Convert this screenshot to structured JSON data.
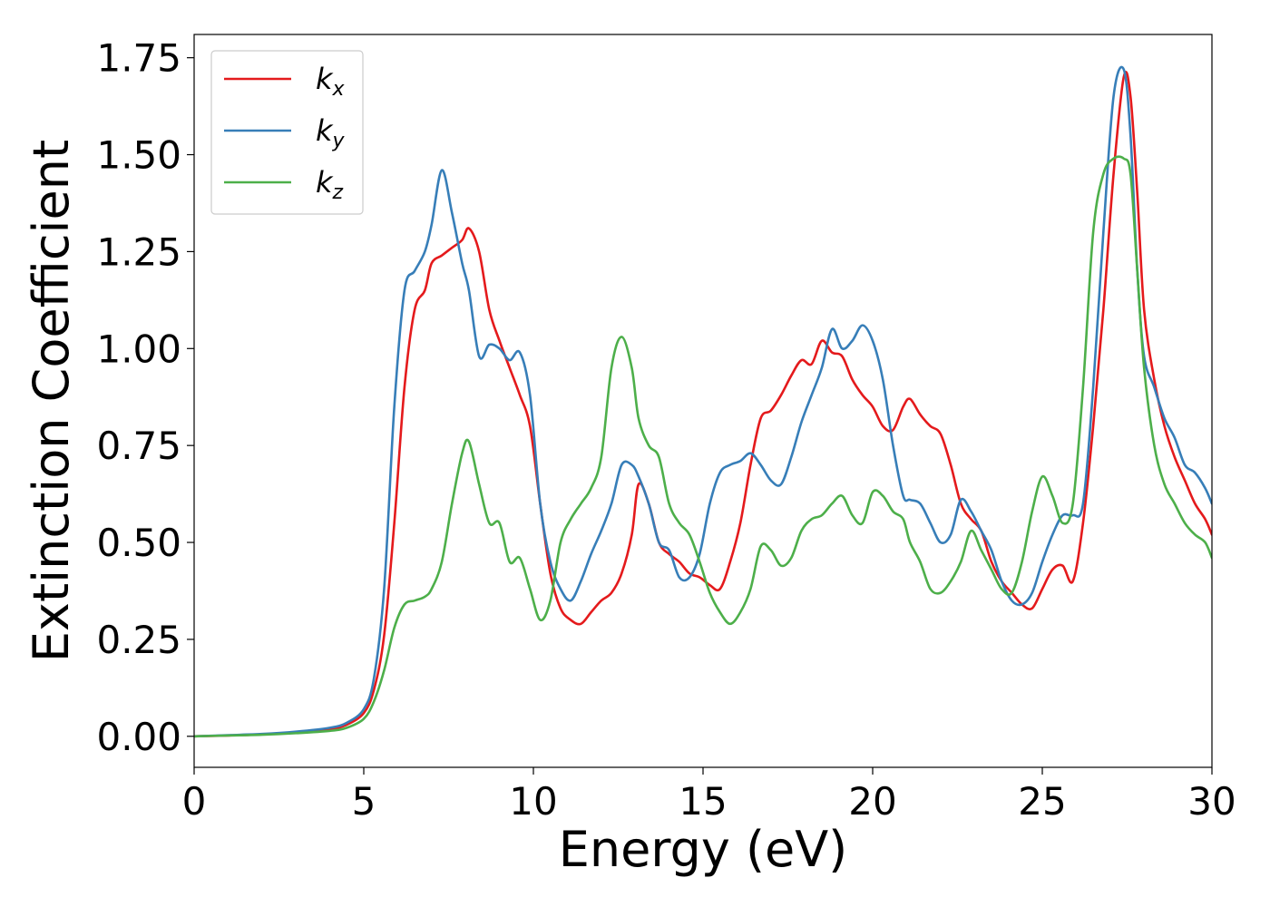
{
  "chart_data": {
    "type": "line",
    "xlabel": "Energy (eV)",
    "ylabel": "Extinction Coefficient",
    "xlim": [
      0,
      30
    ],
    "ylim": [
      -0.08,
      1.81
    ],
    "xticks": [
      0,
      5,
      10,
      15,
      20,
      25,
      30
    ],
    "xtick_labels": [
      "0",
      "5",
      "10",
      "15",
      "20",
      "25",
      "30"
    ],
    "yticks": [
      0.0,
      0.25,
      0.5,
      0.75,
      1.0,
      1.25,
      1.5,
      1.75
    ],
    "ytick_labels": [
      "0.00",
      "0.25",
      "0.50",
      "0.75",
      "1.00",
      "1.25",
      "1.50",
      "1.75"
    ],
    "grid": false,
    "legend_position": "upper-left",
    "series": [
      {
        "name": "k_x",
        "label_base": "k",
        "label_sub": "x",
        "color": "#e41a1c",
        "x": [
          0,
          1,
          2,
          3,
          4,
          4.5,
          5,
          5.3,
          5.6,
          5.9,
          6.2,
          6.5,
          6.8,
          7.0,
          7.3,
          7.6,
          7.9,
          8.1,
          8.4,
          8.7,
          9.0,
          9.3,
          9.6,
          9.9,
          10.2,
          10.5,
          10.8,
          11.1,
          11.4,
          11.7,
          12.0,
          12.3,
          12.6,
          12.9,
          13.1,
          13.4,
          13.7,
          14.0,
          14.3,
          14.6,
          14.9,
          15.2,
          15.5,
          15.8,
          16.1,
          16.4,
          16.7,
          17.0,
          17.3,
          17.6,
          17.9,
          18.2,
          18.5,
          18.8,
          19.1,
          19.4,
          19.7,
          20.0,
          20.3,
          20.6,
          20.9,
          21.1,
          21.4,
          21.7,
          22.0,
          22.3,
          22.6,
          22.9,
          23.2,
          23.5,
          23.8,
          24.1,
          24.4,
          24.7,
          25.0,
          25.3,
          25.6,
          25.9,
          26.2,
          26.5,
          26.8,
          27.1,
          27.4,
          27.6,
          27.8,
          28.0,
          28.3,
          28.6,
          28.9,
          29.2,
          29.5,
          29.8,
          30.0
        ],
        "y": [
          0.0,
          0.002,
          0.005,
          0.01,
          0.018,
          0.03,
          0.06,
          0.12,
          0.26,
          0.55,
          0.9,
          1.1,
          1.15,
          1.22,
          1.24,
          1.26,
          1.28,
          1.31,
          1.25,
          1.1,
          1.02,
          0.95,
          0.88,
          0.8,
          0.6,
          0.42,
          0.33,
          0.3,
          0.29,
          0.32,
          0.35,
          0.37,
          0.42,
          0.52,
          0.65,
          0.6,
          0.5,
          0.47,
          0.45,
          0.42,
          0.41,
          0.39,
          0.38,
          0.45,
          0.55,
          0.7,
          0.82,
          0.84,
          0.88,
          0.93,
          0.97,
          0.96,
          1.02,
          0.99,
          0.98,
          0.92,
          0.88,
          0.85,
          0.8,
          0.79,
          0.85,
          0.87,
          0.83,
          0.8,
          0.78,
          0.7,
          0.6,
          0.56,
          0.53,
          0.45,
          0.4,
          0.37,
          0.34,
          0.33,
          0.38,
          0.43,
          0.44,
          0.4,
          0.55,
          0.8,
          1.1,
          1.45,
          1.7,
          1.65,
          1.4,
          1.1,
          0.92,
          0.8,
          0.72,
          0.66,
          0.6,
          0.56,
          0.52
        ]
      },
      {
        "name": "k_y",
        "label_base": "k",
        "label_sub": "y",
        "color": "#377eb8",
        "x": [
          0,
          1,
          2,
          3,
          4,
          4.5,
          5,
          5.3,
          5.6,
          5.9,
          6.2,
          6.5,
          6.8,
          7.0,
          7.3,
          7.6,
          7.9,
          8.1,
          8.4,
          8.7,
          9.0,
          9.3,
          9.6,
          9.9,
          10.2,
          10.5,
          10.8,
          11.1,
          11.4,
          11.7,
          12.0,
          12.3,
          12.6,
          12.9,
          13.1,
          13.4,
          13.7,
          14.0,
          14.3,
          14.6,
          14.9,
          15.2,
          15.5,
          15.8,
          16.1,
          16.4,
          16.7,
          17.0,
          17.3,
          17.6,
          17.9,
          18.2,
          18.5,
          18.8,
          19.1,
          19.4,
          19.7,
          20.0,
          20.3,
          20.6,
          20.9,
          21.1,
          21.4,
          21.7,
          22.0,
          22.3,
          22.6,
          22.9,
          23.2,
          23.5,
          23.8,
          24.1,
          24.4,
          24.7,
          25.0,
          25.3,
          25.6,
          25.9,
          26.2,
          26.5,
          26.8,
          27.1,
          27.4,
          27.6,
          27.8,
          28.0,
          28.3,
          28.6,
          28.9,
          29.2,
          29.5,
          29.8,
          30.0
        ],
        "y": [
          0.0,
          0.003,
          0.006,
          0.012,
          0.022,
          0.035,
          0.07,
          0.15,
          0.38,
          0.85,
          1.15,
          1.2,
          1.25,
          1.32,
          1.46,
          1.35,
          1.22,
          1.15,
          0.98,
          1.01,
          1.0,
          0.97,
          0.99,
          0.88,
          0.6,
          0.45,
          0.38,
          0.35,
          0.4,
          0.47,
          0.53,
          0.6,
          0.7,
          0.7,
          0.67,
          0.6,
          0.5,
          0.48,
          0.41,
          0.41,
          0.47,
          0.6,
          0.68,
          0.7,
          0.71,
          0.73,
          0.7,
          0.66,
          0.65,
          0.72,
          0.81,
          0.88,
          0.95,
          1.05,
          1.0,
          1.02,
          1.06,
          1.02,
          0.92,
          0.75,
          0.62,
          0.61,
          0.6,
          0.55,
          0.5,
          0.52,
          0.61,
          0.58,
          0.53,
          0.48,
          0.4,
          0.35,
          0.34,
          0.37,
          0.45,
          0.52,
          0.57,
          0.57,
          0.6,
          0.9,
          1.3,
          1.65,
          1.72,
          1.55,
          1.2,
          0.98,
          0.9,
          0.82,
          0.77,
          0.7,
          0.68,
          0.64,
          0.6
        ]
      },
      {
        "name": "k_z",
        "label_base": "k",
        "label_sub": "z",
        "color": "#4daf4a",
        "x": [
          0,
          1,
          2,
          3,
          4,
          4.5,
          5,
          5.3,
          5.6,
          5.9,
          6.2,
          6.5,
          6.8,
          7.0,
          7.3,
          7.6,
          7.9,
          8.1,
          8.4,
          8.7,
          9.0,
          9.3,
          9.6,
          9.9,
          10.2,
          10.5,
          10.8,
          11.1,
          11.4,
          11.7,
          12.0,
          12.3,
          12.6,
          12.9,
          13.1,
          13.4,
          13.7,
          14.0,
          14.3,
          14.6,
          14.9,
          15.2,
          15.5,
          15.8,
          16.1,
          16.4,
          16.7,
          17.0,
          17.3,
          17.6,
          17.9,
          18.2,
          18.5,
          18.8,
          19.1,
          19.4,
          19.7,
          20.0,
          20.3,
          20.6,
          20.9,
          21.1,
          21.4,
          21.7,
          22.0,
          22.3,
          22.6,
          22.9,
          23.2,
          23.5,
          23.8,
          24.1,
          24.4,
          24.7,
          25.0,
          25.3,
          25.6,
          25.9,
          26.2,
          26.5,
          26.8,
          27.1,
          27.4,
          27.6,
          27.8,
          28.0,
          28.3,
          28.6,
          28.9,
          29.2,
          29.5,
          29.8,
          30.0
        ],
        "y": [
          0.0,
          0.002,
          0.004,
          0.008,
          0.014,
          0.022,
          0.045,
          0.09,
          0.17,
          0.28,
          0.34,
          0.35,
          0.36,
          0.38,
          0.45,
          0.6,
          0.73,
          0.76,
          0.65,
          0.55,
          0.55,
          0.45,
          0.46,
          0.38,
          0.3,
          0.35,
          0.5,
          0.56,
          0.6,
          0.64,
          0.72,
          0.95,
          1.03,
          0.95,
          0.82,
          0.75,
          0.72,
          0.6,
          0.55,
          0.52,
          0.45,
          0.37,
          0.32,
          0.29,
          0.32,
          0.38,
          0.49,
          0.48,
          0.44,
          0.46,
          0.53,
          0.56,
          0.57,
          0.6,
          0.62,
          0.57,
          0.55,
          0.63,
          0.62,
          0.58,
          0.56,
          0.5,
          0.45,
          0.38,
          0.37,
          0.4,
          0.45,
          0.53,
          0.48,
          0.43,
          0.38,
          0.37,
          0.45,
          0.58,
          0.67,
          0.62,
          0.55,
          0.6,
          0.9,
          1.3,
          1.45,
          1.49,
          1.49,
          1.45,
          1.2,
          0.95,
          0.75,
          0.65,
          0.6,
          0.55,
          0.52,
          0.5,
          0.46
        ]
      }
    ]
  }
}
